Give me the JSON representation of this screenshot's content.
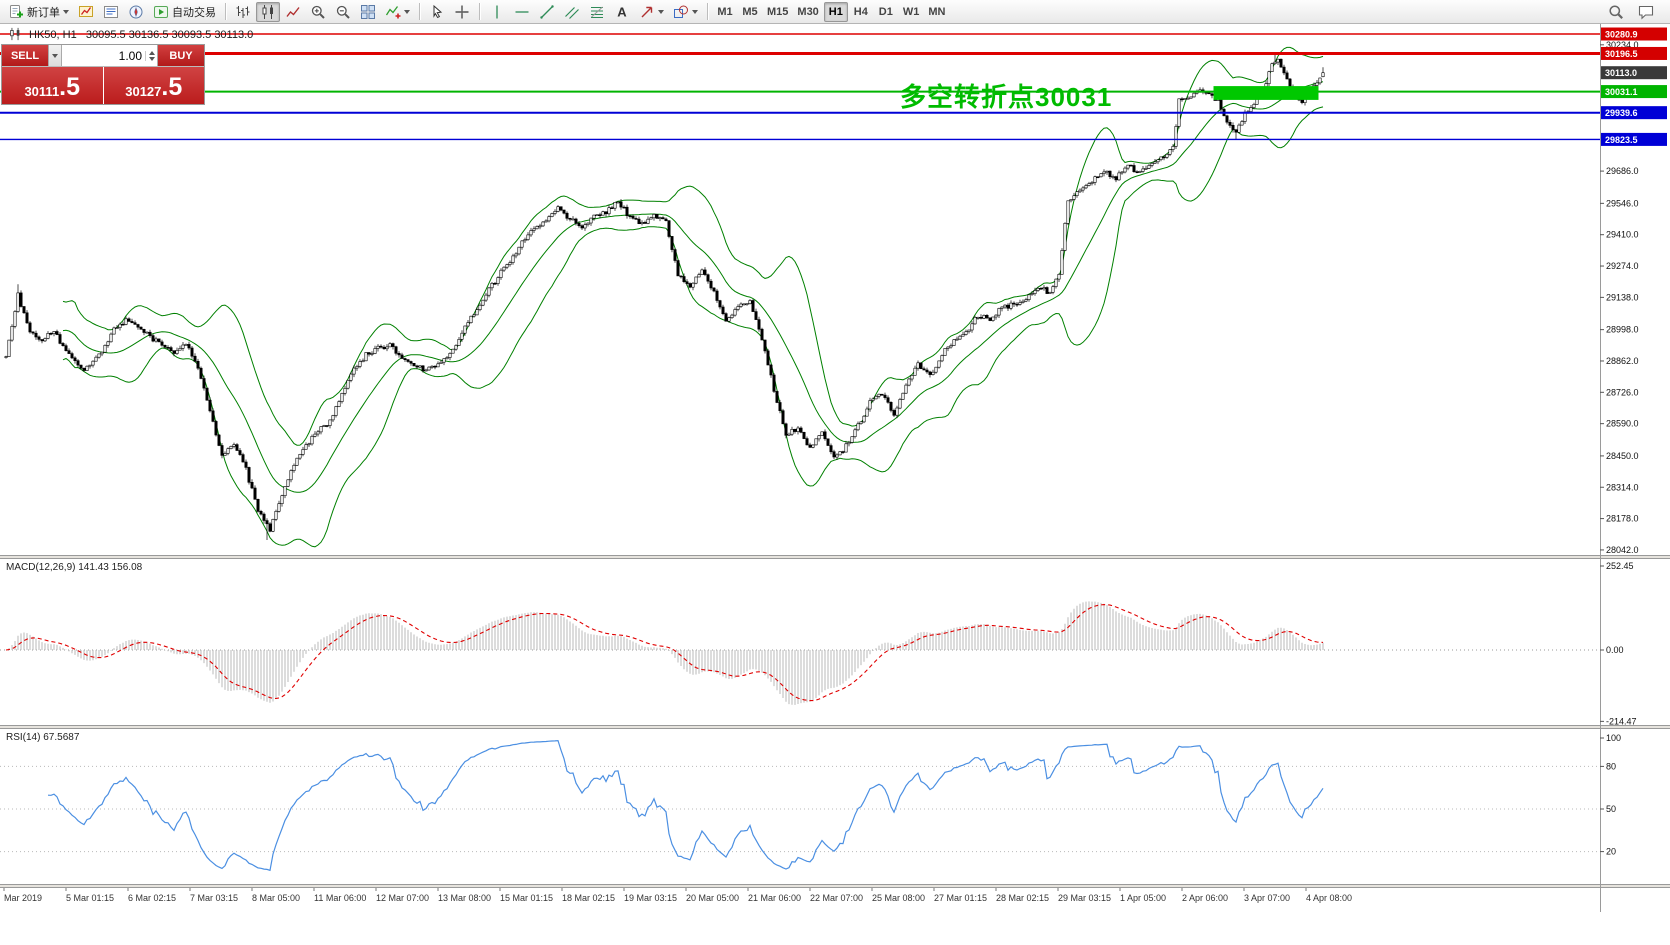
{
  "toolbar": {
    "groups": [
      {
        "name": "order",
        "divider_before": false,
        "items": [
          {
            "name": "new-order-button",
            "icon": "new-order",
            "label": "新订单",
            "caret": true
          }
        ]
      },
      {
        "name": "panels",
        "divider_before": false,
        "items": [
          {
            "name": "profile-charts-button",
            "icon": "profile"
          },
          {
            "name": "market-watch-button",
            "icon": "market-watch"
          },
          {
            "name": "navigator-button",
            "icon": "navigator"
          },
          {
            "name": "autotrading-button",
            "icon": "autotrading",
            "label": "自动交易"
          }
        ]
      },
      {
        "name": "chart-types",
        "divider_before": true,
        "items": [
          {
            "name": "bar-chart-button",
            "icon": "bar-chart"
          },
          {
            "name": "candlestick-chart-button",
            "icon": "candlestick-chart",
            "active": true
          },
          {
            "name": "line-chart-button",
            "icon": "line-chart"
          }
        ]
      },
      {
        "name": "zoom",
        "divider_before": false,
        "items": [
          {
            "name": "zoom-in-button",
            "icon": "zoom-in"
          },
          {
            "name": "zoom-out-button",
            "icon": "zoom-out"
          }
        ]
      },
      {
        "name": "windows",
        "divider_before": false,
        "items": [
          {
            "name": "tile-windows-button",
            "icon": "tile-windows"
          },
          {
            "name": "indicators-button",
            "icon": "indicators",
            "caret": true
          }
        ]
      },
      {
        "name": "pointer",
        "divider_before": true,
        "items": [
          {
            "name": "cursor-button",
            "icon": "cursor"
          },
          {
            "name": "crosshair-button",
            "icon": "crosshair"
          }
        ]
      },
      {
        "name": "draw-objects",
        "divider_before": true,
        "items": [
          {
            "name": "vertical-line-button",
            "icon": "vline"
          },
          {
            "name": "horizontal-line-button",
            "icon": "hline"
          },
          {
            "name": "trendline-button",
            "icon": "trendline"
          },
          {
            "name": "equidistant-channel-button",
            "icon": "channel"
          },
          {
            "name": "fibonacci-button",
            "icon": "fibonacci"
          },
          {
            "name": "text-label-button",
            "icon": "text"
          },
          {
            "name": "arrows-button",
            "icon": "arrow",
            "caret": true
          },
          {
            "name": "shapes-button",
            "icon": "shapes",
            "caret": true
          }
        ]
      },
      {
        "name": "timeframes",
        "divider_before": true,
        "type": "timeframes",
        "items": [
          {
            "name": "timeframe-m1",
            "label": "M1"
          },
          {
            "name": "timeframe-m5",
            "label": "M5"
          },
          {
            "name": "timeframe-m15",
            "label": "M15"
          },
          {
            "name": "timeframe-m30",
            "label": "M30"
          },
          {
            "name": "timeframe-h1",
            "label": "H1",
            "active": true
          },
          {
            "name": "timeframe-h4",
            "label": "H4"
          },
          {
            "name": "timeframe-d1",
            "label": "D1"
          },
          {
            "name": "timeframe-w1",
            "label": "W1"
          },
          {
            "name": "timeframe-mn",
            "label": "MN"
          }
        ]
      }
    ],
    "right_items": [
      {
        "name": "search-button",
        "icon": "search"
      },
      {
        "name": "community-button",
        "icon": "chat"
      }
    ]
  },
  "chart_header": {
    "text": "HK50, H1   30095.5 30136.5 30093.5 30113.0"
  },
  "trade_panel": {
    "sell_label": "SELL",
    "buy_label": "BUY",
    "volume": "1.00",
    "sell_price_main": "30111",
    "sell_price_frac": ".5",
    "buy_price_main": "30127",
    "buy_price_frac": ".5"
  },
  "annotation": {
    "text": "多空转折点30031",
    "color": "#00bb00"
  },
  "chart_data": [
    {
      "type": "candlestick",
      "symbol": "HK50",
      "period": "H1",
      "ohlc": {
        "open": "30095.5",
        "high": "30136.5",
        "low": "30093.5",
        "close": "30113.0"
      },
      "ylim": [
        28020,
        30320
      ],
      "y_ticks": [
        "30234.0",
        "29686.0",
        "29546.0",
        "29410.0",
        "29274.0",
        "29138.0",
        "28998.0",
        "28862.0",
        "28726.0",
        "28590.0",
        "28450.0",
        "28314.0",
        "28178.0",
        "28042.0"
      ],
      "x_labels": [
        "Mar 2019",
        "5 Mar 01:15",
        "6 Mar 02:15",
        "7 Mar 03:15",
        "8 Mar 05:00",
        "11 Mar 06:00",
        "12 Mar 07:00",
        "13 Mar 08:00",
        "15 Mar 01:15",
        "18 Mar 02:15",
        "19 Mar 03:15",
        "20 Mar 05:00",
        "21 Mar 06:00",
        "22 Mar 07:00",
        "25 Mar 08:00",
        "27 Mar 01:15",
        "28 Mar 02:15",
        "29 Mar 03:15",
        "1 Apr 05:00",
        "2 Apr 06:00",
        "3 Apr 07:00",
        "4 Apr 08:00"
      ],
      "price_lines": [
        {
          "price": 30280.9,
          "label": "30280.9",
          "line_color": "#dd0000",
          "line_width": 1.4,
          "line_style": "solid",
          "box_color": "#d40000"
        },
        {
          "price": 30196.5,
          "label": "30196.5",
          "line_color": "#dd0000",
          "line_width": 3,
          "line_style": "solid",
          "box_color": "#d40000"
        },
        {
          "price": 30113.0,
          "label": "30113.0",
          "line_color": "#777777",
          "line_width": 1,
          "line_style": "none",
          "box_color": "#3a3a3a"
        },
        {
          "price": 30031.1,
          "label": "30031.1",
          "line_color": "#00b400",
          "line_width": 2,
          "line_style": "solid",
          "box_color": "#00b400"
        },
        {
          "price": 29939.6,
          "label": "29939.6",
          "line_color": "#0000d6",
          "line_width": 2,
          "line_style": "solid",
          "box_color": "#0000d6"
        },
        {
          "price": 29823.5,
          "label": "29823.5",
          "line_color": "#0000d6",
          "line_width": 1.4,
          "line_style": "solid",
          "box_color": "#0000d6"
        }
      ],
      "highlight_rect": {
        "from_index": 403,
        "to_index": 437,
        "price_top": 30055,
        "price_bottom": 29995,
        "color": "#00c800"
      },
      "bollinger": {
        "period": 20,
        "deviation": 2,
        "color": "#008000"
      },
      "candles": {
        "count": 440,
        "up_fill": "#ffffff",
        "down_fill": "#000000",
        "outline": "#000000"
      },
      "last_candle": {
        "open": 30095.5,
        "high": 30136.5,
        "low": 30093.5,
        "close": 30113.0
      },
      "key_points": [
        {
          "index": 4,
          "high": 29195
        },
        {
          "index": 87,
          "low": 28085
        },
        {
          "index": 410,
          "low": 29822
        },
        {
          "index": 423,
          "high": 30195
        }
      ],
      "price_path_anchors": [
        [
          0,
          28880
        ],
        [
          4,
          29150
        ],
        [
          8,
          28990
        ],
        [
          12,
          28950
        ],
        [
          16,
          28990
        ],
        [
          20,
          28910
        ],
        [
          26,
          28820
        ],
        [
          32,
          28900
        ],
        [
          36,
          29000
        ],
        [
          40,
          29040
        ],
        [
          46,
          28990
        ],
        [
          52,
          28930
        ],
        [
          56,
          28900
        ],
        [
          60,
          28930
        ],
        [
          64,
          28840
        ],
        [
          68,
          28640
        ],
        [
          72,
          28450
        ],
        [
          76,
          28500
        ],
        [
          80,
          28390
        ],
        [
          84,
          28220
        ],
        [
          88,
          28130
        ],
        [
          92,
          28280
        ],
        [
          96,
          28420
        ],
        [
          100,
          28500
        ],
        [
          104,
          28560
        ],
        [
          108,
          28600
        ],
        [
          112,
          28720
        ],
        [
          116,
          28820
        ],
        [
          120,
          28890
        ],
        [
          124,
          28920
        ],
        [
          128,
          28930
        ],
        [
          132,
          28870
        ],
        [
          136,
          28840
        ],
        [
          140,
          28820
        ],
        [
          144,
          28850
        ],
        [
          148,
          28890
        ],
        [
          152,
          28990
        ],
        [
          156,
          29070
        ],
        [
          160,
          29150
        ],
        [
          164,
          29230
        ],
        [
          168,
          29290
        ],
        [
          172,
          29380
        ],
        [
          176,
          29440
        ],
        [
          180,
          29470
        ],
        [
          184,
          29530
        ],
        [
          188,
          29480
        ],
        [
          192,
          29440
        ],
        [
          196,
          29490
        ],
        [
          200,
          29510
        ],
        [
          204,
          29550
        ],
        [
          208,
          29490
        ],
        [
          212,
          29460
        ],
        [
          216,
          29500
        ],
        [
          220,
          29460
        ],
        [
          224,
          29240
        ],
        [
          228,
          29180
        ],
        [
          232,
          29260
        ],
        [
          236,
          29160
        ],
        [
          240,
          29040
        ],
        [
          244,
          29100
        ],
        [
          248,
          29120
        ],
        [
          252,
          28960
        ],
        [
          256,
          28740
        ],
        [
          260,
          28540
        ],
        [
          264,
          28570
        ],
        [
          268,
          28480
        ],
        [
          272,
          28560
        ],
        [
          276,
          28440
        ],
        [
          280,
          28490
        ],
        [
          284,
          28580
        ],
        [
          288,
          28680
        ],
        [
          292,
          28720
        ],
        [
          296,
          28630
        ],
        [
          300,
          28760
        ],
        [
          304,
          28850
        ],
        [
          308,
          28800
        ],
        [
          312,
          28890
        ],
        [
          316,
          28950
        ],
        [
          320,
          28990
        ],
        [
          324,
          29060
        ],
        [
          328,
          29040
        ],
        [
          332,
          29090
        ],
        [
          336,
          29110
        ],
        [
          340,
          29130
        ],
        [
          344,
          29180
        ],
        [
          348,
          29160
        ],
        [
          351,
          29240
        ],
        [
          354,
          29560
        ],
        [
          358,
          29610
        ],
        [
          362,
          29640
        ],
        [
          366,
          29690
        ],
        [
          370,
          29650
        ],
        [
          374,
          29710
        ],
        [
          378,
          29680
        ],
        [
          382,
          29720
        ],
        [
          386,
          29750
        ],
        [
          389,
          29790
        ],
        [
          391,
          29990
        ],
        [
          394,
          30000
        ],
        [
          398,
          30040
        ],
        [
          401,
          30020
        ],
        [
          404,
          29990
        ],
        [
          407,
          29900
        ],
        [
          410,
          29855
        ],
        [
          413,
          29930
        ],
        [
          416,
          29985
        ],
        [
          419,
          30040
        ],
        [
          422,
          30140
        ],
        [
          424,
          30170
        ],
        [
          426,
          30110
        ],
        [
          429,
          30030
        ],
        [
          432,
          29990
        ],
        [
          435,
          30045
        ],
        [
          437,
          30075
        ],
        [
          439,
          30113
        ]
      ]
    },
    {
      "type": "macd",
      "label": "MACD(12,26,9) 141.43 156.08",
      "fast": 12,
      "slow": 26,
      "signal": 9,
      "value_main": "141.43",
      "value_signal": "156.08",
      "y_ticks": [
        "252.45",
        "0.00",
        "-214.47"
      ],
      "histogram_color": "#b8b8b8",
      "signal_color": "#e00000"
    },
    {
      "type": "rsi",
      "label": "RSI(14) 67.5687",
      "period": 14,
      "value": "67.5687",
      "y_ticks": [
        "100",
        "80",
        "50",
        "20"
      ],
      "levels": [
        80,
        50,
        20
      ],
      "line_color": "#4b8fe2"
    }
  ]
}
